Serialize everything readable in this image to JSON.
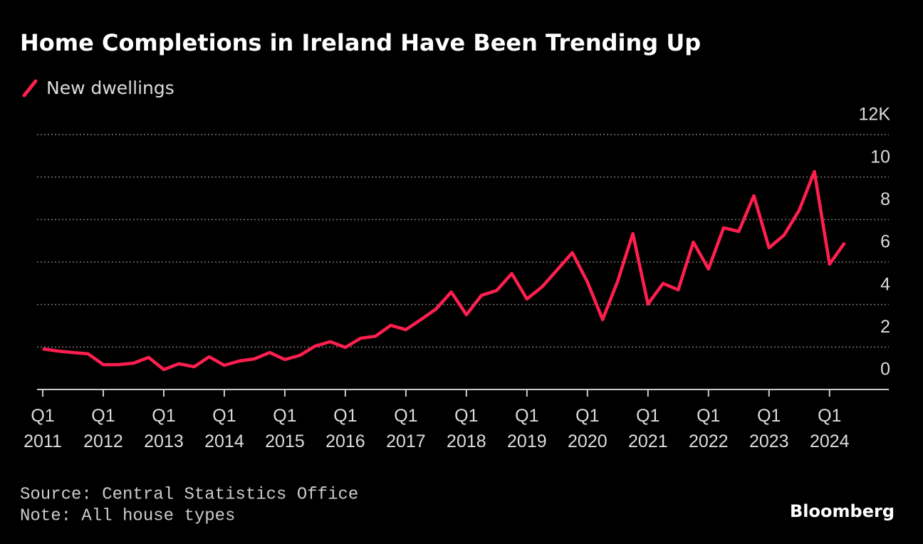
{
  "chart_data": {
    "type": "line",
    "title": "Home Completions in Ireland Have Been Trending Up",
    "categories": [
      "Q1\n2011",
      null,
      null,
      null,
      "Q1\n2012",
      null,
      null,
      null,
      "Q1\n2013",
      null,
      null,
      null,
      "Q1\n2014",
      null,
      null,
      null,
      "Q1\n2015",
      null,
      null,
      null,
      "Q1\n2016",
      null,
      null,
      null,
      "Q1\n2017",
      null,
      null,
      null,
      "Q1\n2018",
      null,
      null,
      null,
      "Q1\n2019",
      null,
      null,
      null,
      "Q1\n2020",
      null,
      null,
      null,
      "Q1\n2021",
      null,
      null,
      null,
      "Q1\n2022",
      null,
      null,
      null,
      "Q1\n2023",
      null,
      null,
      null,
      "Q1\n2024",
      null
    ],
    "series": [
      {
        "name": "New dwellings",
        "color": "#ff1f4f",
        "values": [
          1.91,
          1.81,
          1.74,
          1.68,
          1.17,
          1.17,
          1.24,
          1.51,
          0.94,
          1.21,
          1.07,
          1.54,
          1.14,
          1.34,
          1.44,
          1.74,
          1.41,
          1.61,
          2.04,
          2.25,
          1.98,
          2.41,
          2.51,
          3.02,
          2.82,
          3.29,
          3.79,
          4.59,
          3.52,
          4.43,
          4.66,
          5.46,
          4.26,
          4.83,
          5.63,
          6.44,
          5.06,
          3.29,
          5.1,
          7.34,
          4.02,
          4.99,
          4.69,
          6.94,
          5.67,
          7.61,
          7.44,
          9.12,
          6.67,
          7.27,
          8.45,
          10.26,
          5.9,
          6.91
        ]
      }
    ],
    "ylim": [
      0,
      12
    ],
    "yticks": [
      0,
      2,
      4,
      6,
      8,
      10,
      {
        "value": 12,
        "label": "12K"
      }
    ],
    "grid": true,
    "legend": "top-left",
    "source": "Source: Central Statistics Office",
    "note": "Note: All house types",
    "logo": "Bloomberg"
  }
}
